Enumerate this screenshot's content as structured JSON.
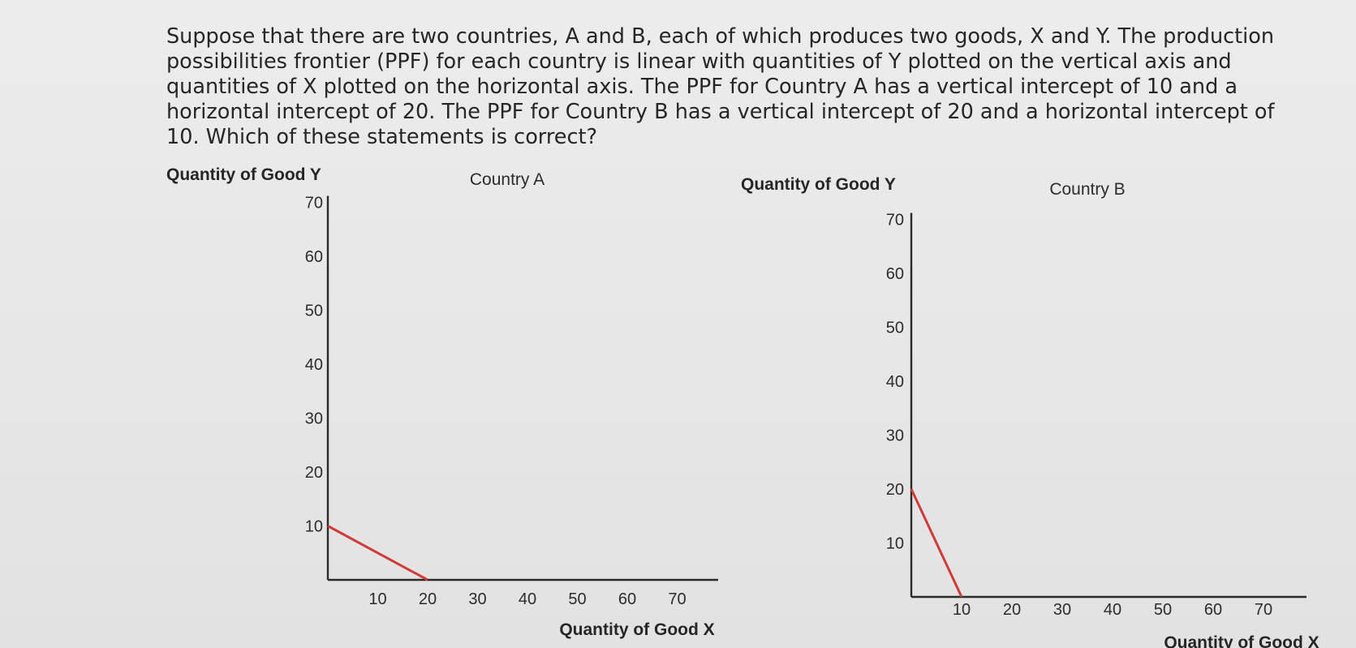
{
  "question": "Suppose that there are two countries, A and B, each of which produces two goods, X and Y. The production possibilities frontier (PPF) for each country is linear with quantities of Y plotted on the vertical axis and quantities of X plotted on the horizontal axis. The PPF for Country A has a vertical intercept of 10 and a horizontal intercept of 20. The PPF for Country B has a vertical intercept of 20 and a horizontal intercept of 10. Which of these statements is correct?",
  "colors": {
    "axis": "#2a2a2a",
    "ppf": "#d03a3a"
  },
  "chart_data": [
    {
      "type": "line",
      "title": "Country A",
      "ylabel": "Quantity of Good Y",
      "xlabel": "Quantity of Good X",
      "xticks": [
        10,
        20,
        30,
        40,
        50,
        60,
        70
      ],
      "yticks": [
        10,
        20,
        30,
        40,
        50,
        60,
        70
      ],
      "xlim": [
        0,
        80
      ],
      "ylim": [
        0,
        70
      ],
      "grid": false,
      "series": [
        {
          "x": [
            0,
            20
          ],
          "y": [
            10,
            0
          ]
        }
      ]
    },
    {
      "type": "line",
      "title": "Country B",
      "ylabel": "Quantity of Good Y",
      "xlabel": "Quantity of Good X",
      "xticks": [
        10,
        20,
        30,
        40,
        50,
        60,
        70
      ],
      "yticks": [
        10,
        20,
        30,
        40,
        50,
        60,
        70
      ],
      "xlim": [
        0,
        80
      ],
      "ylim": [
        0,
        70
      ],
      "grid": false,
      "series": [
        {
          "x": [
            0,
            10
          ],
          "y": [
            20,
            0
          ]
        }
      ]
    }
  ]
}
